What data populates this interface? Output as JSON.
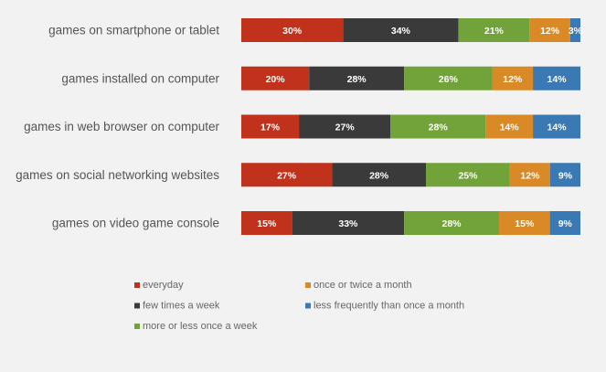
{
  "chart_data": {
    "type": "bar",
    "orientation": "horizontal",
    "stacked": true,
    "percent_stacked": true,
    "title": "",
    "xlabel": "",
    "ylabel": "",
    "grid": false,
    "legend_position": "bottom",
    "categories": [
      "games on smartphone or tablet",
      "games installed on computer",
      "games in web browser on computer",
      "games on social networking websites",
      "games on video game console"
    ],
    "series": [
      {
        "name": "everyday",
        "color": "#c0321c",
        "values": [
          30,
          20,
          17,
          27,
          15
        ]
      },
      {
        "name": "few times a week",
        "color": "#3a3a3a",
        "values": [
          34,
          28,
          27,
          28,
          33
        ]
      },
      {
        "name": "more or less once a week",
        "color": "#72a33a",
        "values": [
          21,
          26,
          28,
          25,
          28
        ]
      },
      {
        "name": "once or twice a month",
        "color": "#d98a26",
        "values": [
          12,
          12,
          14,
          12,
          15
        ]
      },
      {
        "name": "less frequently than once a month",
        "color": "#3a79b3",
        "values": [
          3,
          14,
          14,
          9,
          9
        ]
      }
    ],
    "value_labels": [
      [
        "30%",
        "34%",
        "21%",
        "12%",
        "3%"
      ],
      [
        "20%",
        "28%",
        "26%",
        "12%",
        "14%"
      ],
      [
        "17%",
        "27%",
        "28%",
        "14%",
        "14%"
      ],
      [
        "27%",
        "28%",
        "25%",
        "12%",
        "9%"
      ],
      [
        "15%",
        "33%",
        "28%",
        "15%",
        "9%"
      ]
    ]
  }
}
